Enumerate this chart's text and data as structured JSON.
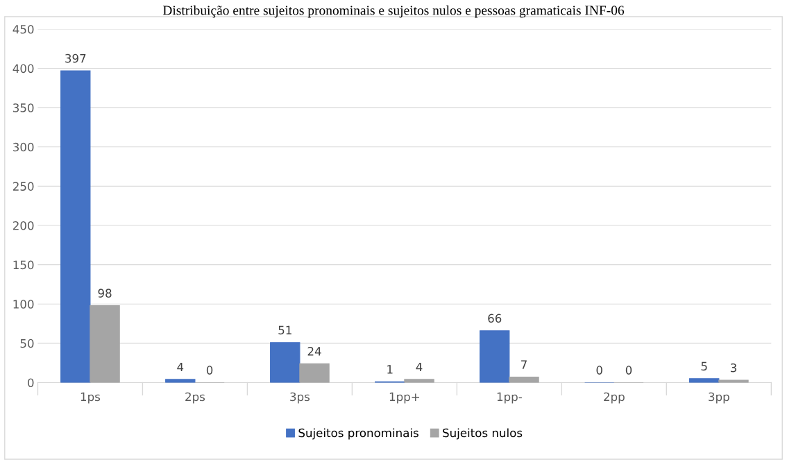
{
  "chart_data": {
    "type": "bar",
    "title": "Distribuição entre sujeitos pronominais e sujeitos nulos e pessoas gramaticais INF-06",
    "categories": [
      "1ps",
      "2ps",
      "3ps",
      "1pp+",
      "1pp-",
      "2pp",
      "3pp"
    ],
    "series": [
      {
        "name": "Sujeitos pronominais",
        "color": "#4472c4",
        "values": [
          397,
          4,
          51,
          1,
          66,
          0,
          5
        ]
      },
      {
        "name": "Sujeitos nulos",
        "color": "#a5a5a5",
        "values": [
          98,
          0,
          24,
          4,
          7,
          0,
          3
        ]
      }
    ],
    "ylim": [
      0,
      450
    ],
    "yticks": [
      0,
      50,
      100,
      150,
      200,
      250,
      300,
      350,
      400,
      450
    ],
    "grid": "y",
    "legend": "bottom",
    "data_labels": true
  }
}
